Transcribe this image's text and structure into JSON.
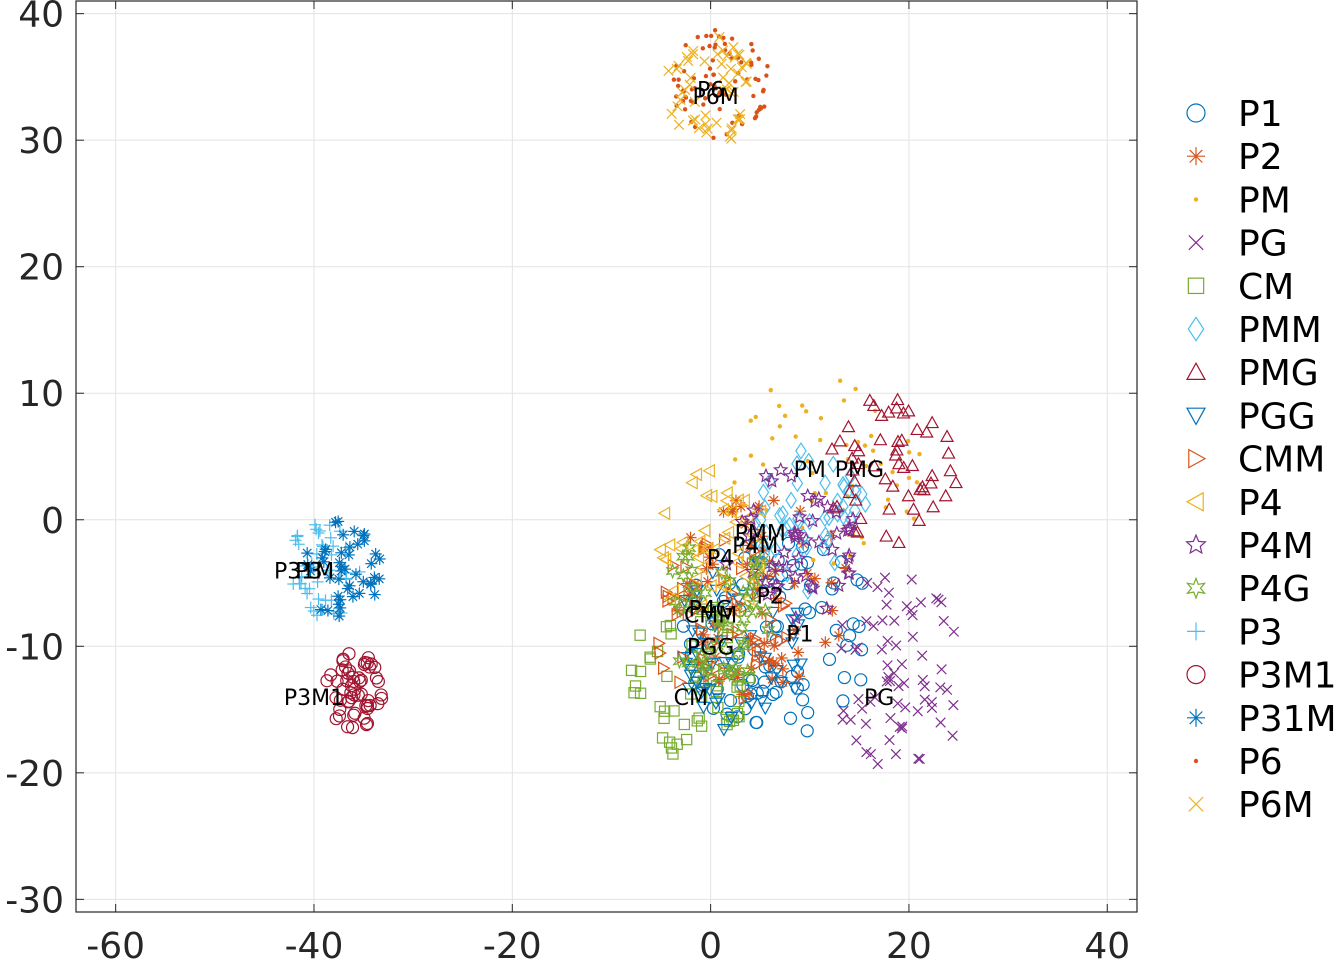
{
  "chart_data": {
    "type": "scatter",
    "title": "",
    "xlabel": "",
    "ylabel": "",
    "xlim": [
      -64,
      43
    ],
    "ylim": [
      -31,
      41
    ],
    "xticks": [
      -60,
      -40,
      -20,
      0,
      20,
      40
    ],
    "yticks": [
      -30,
      -20,
      -10,
      0,
      10,
      20,
      30,
      40
    ],
    "xtick_labels": [
      "-60",
      "-40",
      "-20",
      "0",
      "20",
      "40"
    ],
    "ytick_labels": [
      "-30",
      "-20",
      "-10",
      "0",
      "10",
      "20",
      "30",
      "40"
    ],
    "grid": true,
    "legend_position": "outside-right",
    "series": [
      {
        "name": "P1",
        "marker": "circle",
        "color": "#0072BD",
        "center": [
          7,
          -9
        ],
        "spread": [
          10,
          8
        ],
        "count": 90,
        "label_at": [
          9,
          -9
        ]
      },
      {
        "name": "P2",
        "marker": "asterisk",
        "color": "#D95319",
        "center": [
          5,
          -6
        ],
        "spread": [
          9,
          8
        ],
        "count": 70,
        "label_at": [
          6,
          -6
        ]
      },
      {
        "name": "PM",
        "marker": "dot",
        "color": "#EDB120",
        "center": [
          12,
          4
        ],
        "spread": [
          10,
          8
        ],
        "count": 60,
        "label_at": [
          10,
          4
        ]
      },
      {
        "name": "PG",
        "marker": "x",
        "color": "#7E2F8E",
        "center": [
          19,
          -12
        ],
        "spread": [
          7,
          8
        ],
        "count": 70,
        "label_at": [
          17,
          -14
        ]
      },
      {
        "name": "CM",
        "marker": "square",
        "color": "#77AC30",
        "center": [
          -2,
          -12
        ],
        "spread": [
          6,
          7
        ],
        "count": 60,
        "label_at": [
          -2,
          -14
        ]
      },
      {
        "name": "PMM",
        "marker": "diamond",
        "color": "#4DBEEE",
        "center": [
          10,
          0
        ],
        "spread": [
          6,
          6
        ],
        "count": 50,
        "label_at": [
          5,
          -1
        ]
      },
      {
        "name": "PMG",
        "marker": "triangle-up",
        "color": "#A2142F",
        "center": [
          18,
          4
        ],
        "spread": [
          7,
          6
        ],
        "count": 55,
        "label_at": [
          15,
          4
        ]
      },
      {
        "name": "PGG",
        "marker": "triangle-down",
        "color": "#0072BD",
        "center": [
          3,
          -10
        ],
        "spread": [
          7,
          7
        ],
        "count": 55,
        "label_at": [
          0,
          -10
        ]
      },
      {
        "name": "CMM",
        "marker": "triangle-right",
        "color": "#D95319",
        "center": [
          1,
          -8
        ],
        "spread": [
          7,
          7
        ],
        "count": 55,
        "label_at": [
          0,
          -7.5
        ]
      },
      {
        "name": "P4",
        "marker": "triangle-left",
        "color": "#EDB120",
        "center": [
          0,
          -2
        ],
        "spread": [
          6,
          6
        ],
        "count": 50,
        "label_at": [
          1,
          -3
        ]
      },
      {
        "name": "P4M",
        "marker": "star",
        "color": "#7E2F8E",
        "center": [
          8,
          -2
        ],
        "spread": [
          7,
          6
        ],
        "count": 50,
        "label_at": [
          4.5,
          -2
        ]
      },
      {
        "name": "P4G",
        "marker": "hexagram",
        "color": "#77AC30",
        "center": [
          1,
          -7
        ],
        "spread": [
          6,
          6
        ],
        "count": 50,
        "label_at": [
          0,
          -7
        ]
      },
      {
        "name": "P3",
        "marker": "plus",
        "color": "#4DBEEE",
        "center": [
          -39,
          -4
        ],
        "spread": [
          4,
          4
        ],
        "count": 45,
        "label_at": [
          -40.5,
          -4
        ]
      },
      {
        "name": "P3M1",
        "marker": "circle",
        "color": "#A2142F",
        "center": [
          -36,
          -13.5
        ],
        "spread": [
          3,
          3
        ],
        "count": 55,
        "label_at": [
          -40,
          -14
        ]
      },
      {
        "name": "P31M",
        "marker": "asterisk",
        "color": "#0072BD",
        "center": [
          -37,
          -4
        ],
        "spread": [
          4,
          4
        ],
        "count": 45,
        "label_at": [
          -41,
          -4
        ]
      },
      {
        "name": "P6",
        "marker": "dot",
        "color": "#D95319",
        "center": [
          1,
          34.5
        ],
        "spread": [
          5,
          4.5
        ],
        "count": 80,
        "label_at": [
          0,
          34
        ]
      },
      {
        "name": "P6M",
        "marker": "x",
        "color": "#EDB120",
        "center": [
          0,
          34
        ],
        "spread": [
          4.5,
          4.5
        ],
        "count": 55,
        "label_at": [
          0.5,
          33.5
        ]
      }
    ]
  }
}
